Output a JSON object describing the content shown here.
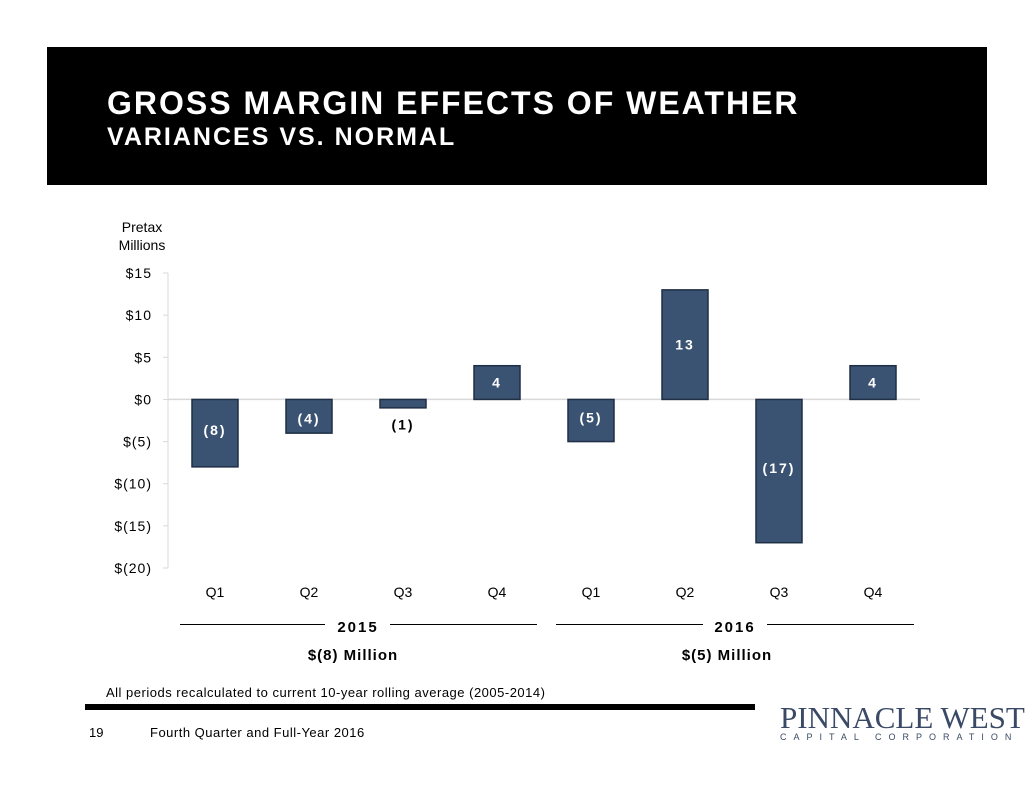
{
  "header": {
    "title": "GROSS MARGIN EFFECTS OF WEATHER",
    "subtitle": "VARIANCES VS. NORMAL"
  },
  "chart_data": {
    "type": "bar",
    "ylabel_lines": [
      "Pretax",
      "Millions"
    ],
    "ylim": [
      -20,
      15
    ],
    "yticks": [
      15,
      10,
      5,
      0,
      -5,
      -10,
      -15,
      -20
    ],
    "ytick_labels": [
      "$15",
      "$10",
      "$5",
      "$0",
      "$(5)",
      "$(10)",
      "$(15)",
      "$(20)"
    ],
    "categories": [
      "Q1",
      "Q2",
      "Q3",
      "Q4",
      "Q1",
      "Q2",
      "Q3",
      "Q4"
    ],
    "values": [
      -8,
      -4,
      -1,
      4,
      -5,
      13,
      -17,
      4
    ],
    "data_labels": [
      "(8)",
      "(4)",
      "(1)",
      "4",
      "(5)",
      "13",
      "(17)",
      "4"
    ],
    "bar_color": "#3b5372",
    "grid": false,
    "groups": [
      {
        "label": "2015",
        "total": "$(8) Million"
      },
      {
        "label": "2016",
        "total": "$(5) Million"
      }
    ]
  },
  "footnote": "All periods recalculated to current 10-year rolling average (2005-2014)",
  "footer": {
    "page_number": "19",
    "text": "Fourth Quarter and Full-Year 2016"
  },
  "logo": {
    "name": "PINNACLE WEST",
    "sub": "CAPITAL CORPORATION"
  }
}
